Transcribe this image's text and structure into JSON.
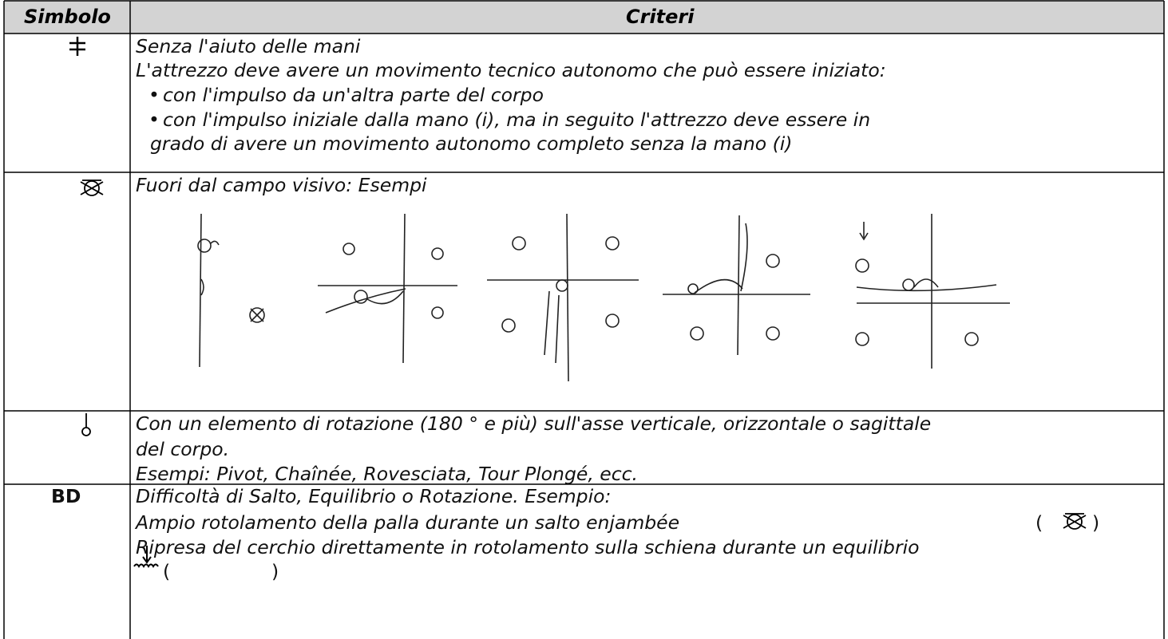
{
  "table": {
    "header": [
      "Simbolo",
      "Criteri"
    ],
    "rows": [
      {
        "lines": [
          "Senza l'aiuto delle mani",
          "L'attrezzo deve avere un movimento tecnico autonomo che può essere iniziato:",
          "con l'impulso da un'altra parte del corpo",
          "con l'impulso iniziale dalla mano (i), ma in seguito l'attrezzo deve essere in",
          "grado di avere un movimento autonomo completo senza la mano (i)"
        ]
      },
      {
        "lines": [
          "Fuori dal campo visivo: Esempi"
        ]
      },
      {
        "lines": [
          "Con un elemento di rotazione (180 ° e più) sull'asse verticale, orizzontale o sagittale",
          "del corpo.",
          "Esempi: Pivot, Chaînée, Rovesciata, Tour Plongé, ecc."
        ]
      },
      {
        "symbol": "BD",
        "lines": [
          "Difficoltà di Salto, Equilibrio o Rotazione. Esempio:",
          "Ampio rotolamento della palla durante un salto enjambée",
          "(",
          ")",
          "Ripresa del cerchio direttamente in rotolamento sulla schiena durante un equilibrio",
          "(",
          ")"
        ]
      }
    ]
  }
}
